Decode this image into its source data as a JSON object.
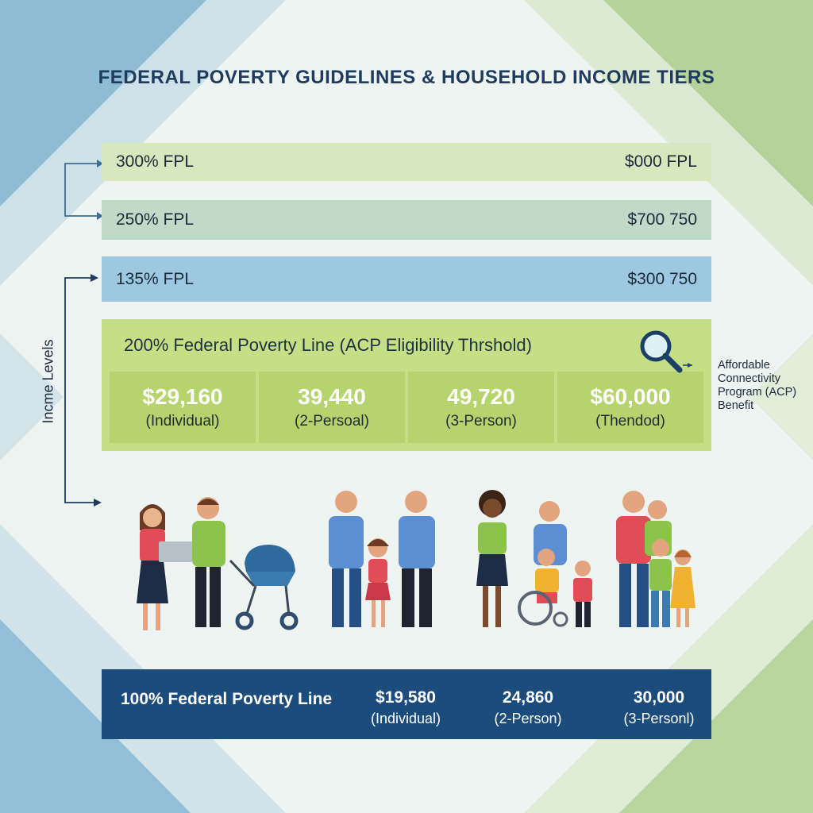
{
  "title": "FEDERAL POVERTY GUIDELINES & HOUSEHOLD INCOME TIERS",
  "y_axis_label": "Incme Levels",
  "tiers": [
    {
      "label": "300% FPL",
      "value": "$000 FPL"
    },
    {
      "label": "250% FPL",
      "value": "$700 750"
    },
    {
      "label": "135% FPL",
      "value": "$300 750"
    }
  ],
  "acp": {
    "title": "200% Federal Poverty Line (ACP Eligibility Thrshold)",
    "cells": [
      {
        "amount": "$29,160",
        "label": "(Individual)"
      },
      {
        "amount": "39,440",
        "label": "(2-Persoal)"
      },
      {
        "amount": "49,720",
        "label": "(3-Person)"
      },
      {
        "amount": "$60,000",
        "label": "(Thendod)"
      }
    ],
    "note": "Affordable Connectivity Program (ACP) Benefit",
    "icon": "magnifier-icon"
  },
  "fpl100": {
    "title": "100% Federal Poverty Line",
    "cells": [
      {
        "amount": "$19,580",
        "label": "(Individual)"
      },
      {
        "amount": "24,860",
        "label": "(2-Person)"
      },
      {
        "amount": "30,000",
        "label": "(3-Personl)"
      }
    ]
  },
  "colors": {
    "title": "#1f3b5e",
    "tier_300": "#d7e8bf",
    "tier_250": "#bfdbc8",
    "tier_135": "#9cc9e1",
    "acp_box": "#c5df86",
    "fpl100": "#1b4c7c"
  }
}
